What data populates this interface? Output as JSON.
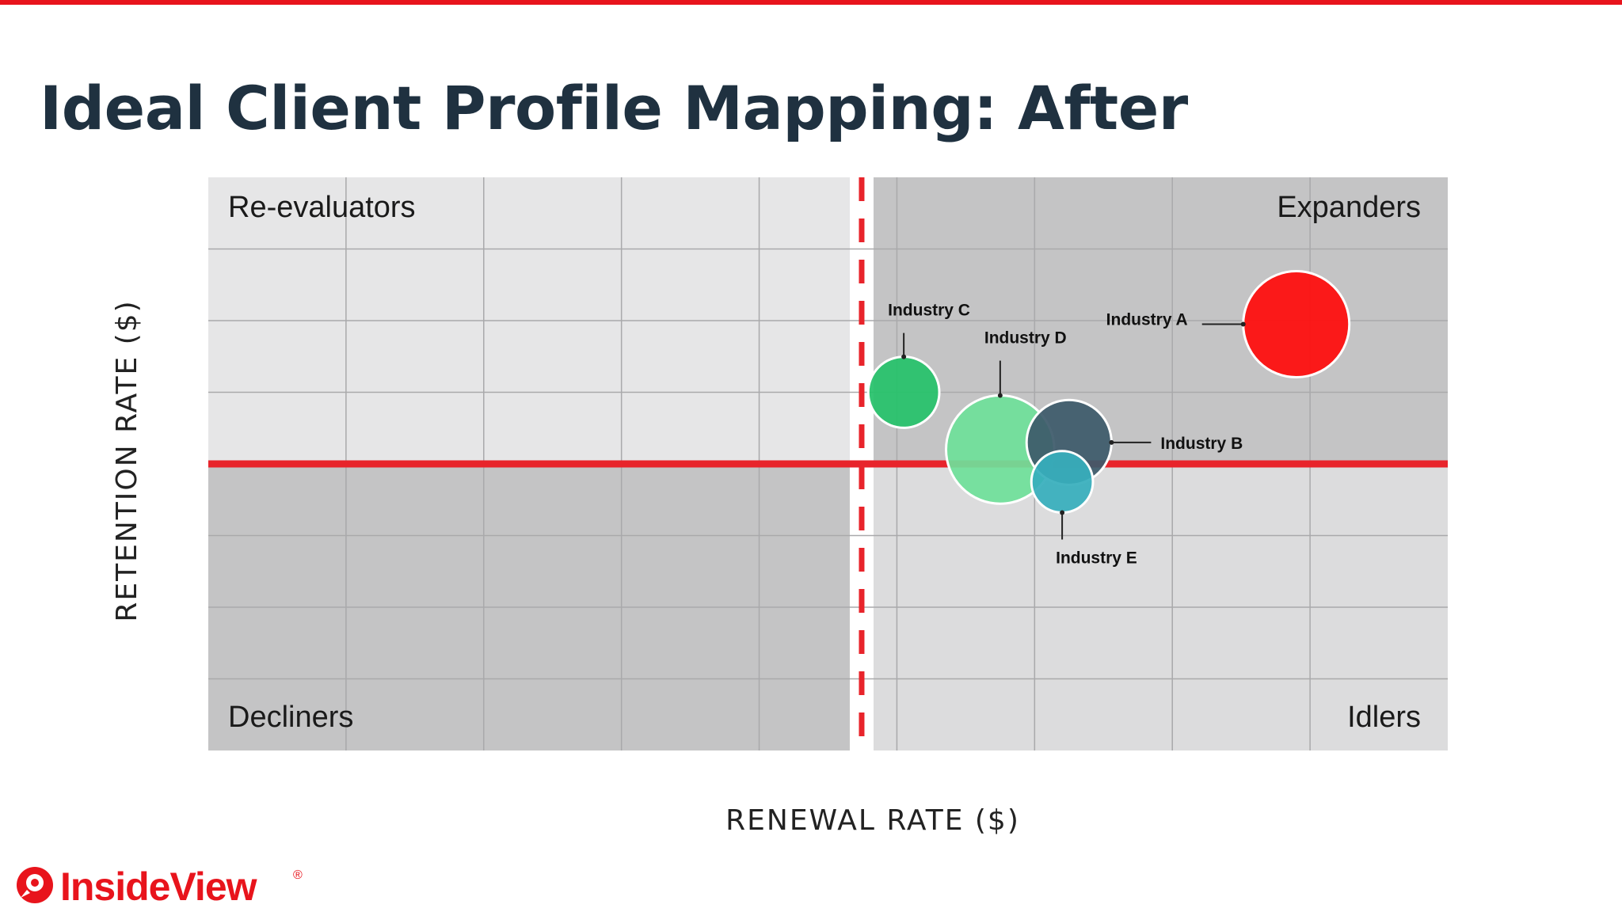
{
  "slide": {
    "title": "Ideal Client Profile Mapping: After"
  },
  "brand": {
    "name": "InsideView",
    "mark": "®",
    "color": "#e8141c"
  },
  "chart_data": {
    "type": "scatter",
    "variant": "bubble-quadrant",
    "xlabel": "RENEWAL RATE ($)",
    "ylabel": "RETENTION RATE ($)",
    "xlim": [
      0,
      9
    ],
    "ylim": [
      0,
      8
    ],
    "grid": true,
    "x_threshold": 4.75,
    "y_threshold": 4,
    "quadrants": {
      "top_left": "Re-evaluators",
      "top_right": "Expanders",
      "bottom_left": "Decliners",
      "bottom_right": "Idlers"
    },
    "series": [
      {
        "name": "Industry A",
        "x": 7.9,
        "y": 5.95,
        "size": 1.0,
        "color": "#ff0c0c"
      },
      {
        "name": "Industry B",
        "x": 6.25,
        "y": 4.3,
        "size": 0.8,
        "color": "#3d5a6b"
      },
      {
        "name": "Industry C",
        "x": 5.05,
        "y": 5.0,
        "size": 0.67,
        "color": "#26c26a"
      },
      {
        "name": "Industry D",
        "x": 5.75,
        "y": 4.2,
        "size": 1.02,
        "color": "#6fe09a"
      },
      {
        "name": "Industry E",
        "x": 6.2,
        "y": 3.75,
        "size": 0.58,
        "color": "#37aebc"
      }
    ]
  }
}
